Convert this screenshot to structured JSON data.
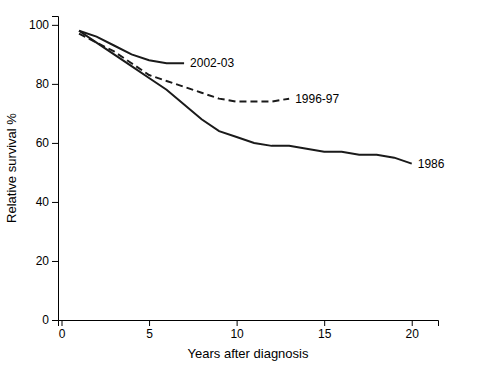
{
  "chart_data": {
    "type": "line",
    "xlabel": "Years after diagnosis",
    "ylabel": "Relative survival %",
    "series": [
      {
        "name": "1986",
        "color": "#1a1a1a",
        "line_style": "solid",
        "x": [
          1,
          2,
          3,
          4,
          5,
          6,
          7,
          8,
          9,
          10,
          11,
          12,
          13,
          14,
          15,
          16,
          17,
          18,
          19,
          20
        ],
        "values": [
          98,
          94,
          90,
          86,
          82,
          78,
          73,
          68,
          64,
          62,
          60,
          59,
          59,
          58,
          57,
          57,
          56,
          56,
          55,
          53
        ]
      },
      {
        "name": "1996-97",
        "color": "#1a1a1a",
        "line_style": "dashed",
        "x": [
          1,
          2,
          3,
          4,
          5,
          6,
          7,
          8,
          9,
          10,
          11,
          12,
          13
        ],
        "values": [
          97,
          94,
          91,
          87,
          83,
          81,
          79,
          77,
          75,
          74,
          74,
          74,
          75
        ]
      },
      {
        "name": "2002-03",
        "color": "#1a1a1a",
        "line_style": "solid",
        "x": [
          1,
          2,
          3,
          4,
          5,
          6,
          7
        ],
        "values": [
          98,
          96,
          93,
          90,
          88,
          87,
          87
        ]
      }
    ],
    "xlim": [
      -0.2,
      21.5
    ],
    "ylim": [
      0,
      103
    ],
    "xticks": [
      0,
      5,
      10,
      15,
      20
    ],
    "yticks": [
      0,
      20,
      40,
      60,
      80,
      100
    ]
  }
}
